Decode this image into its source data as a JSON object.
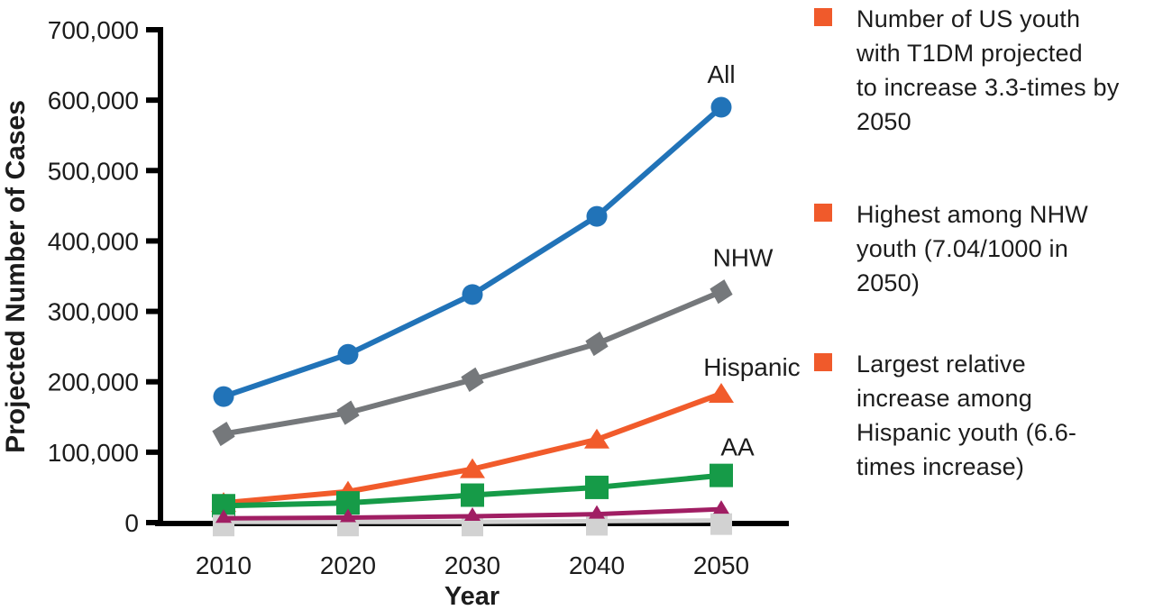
{
  "chart_data": {
    "type": "line",
    "title": "",
    "xlabel": "Year",
    "ylabel": "Projected Number of Cases",
    "x": [
      2010,
      2020,
      2030,
      2040,
      2050
    ],
    "ylim": [
      0,
      700000
    ],
    "ytick_step": 100000,
    "ytick_labels": [
      "0",
      "100,000",
      "200,000",
      "300,000",
      "400,000",
      "500,000",
      "600,000",
      "700,000"
    ],
    "grid": false,
    "legend_position": "inline-labels",
    "series": [
      {
        "id": "all",
        "label": "All",
        "color": "#2173B8",
        "marker": "circle",
        "values": [
          179000,
          239000,
          324000,
          435000,
          590000
        ]
      },
      {
        "id": "nhw",
        "label": "NHW",
        "color": "#75787B",
        "marker": "diamond",
        "values": [
          126000,
          156000,
          203000,
          254000,
          328000
        ]
      },
      {
        "id": "hispanic",
        "label": "Hispanic",
        "color": "#F15B2B",
        "marker": "triangle",
        "values": [
          28000,
          44000,
          76000,
          118000,
          183000
        ]
      },
      {
        "id": "aa",
        "label": "AA",
        "color": "#169B48",
        "marker": "square",
        "values": [
          24000,
          28000,
          39000,
          50000,
          67000
        ]
      },
      {
        "id": "lightgray",
        "label": "",
        "color": "#D2D2D2",
        "marker": "square-small",
        "values": [
          1000,
          1000,
          1000,
          2000,
          3000
        ]
      },
      {
        "id": "purple",
        "label": "",
        "color": "#A01E63",
        "marker": "triangle-small",
        "values": [
          6000,
          7000,
          9000,
          12000,
          19000
        ]
      }
    ]
  },
  "annotations": {
    "bullet_color": "#F05A2B",
    "items": [
      {
        "lines": [
          "Number of US youth",
          "with T1DM projected",
          "to increase 3.3-times by",
          "2050"
        ]
      },
      {
        "lines": [
          "Highest among NHW",
          "youth (7.04/1000 in",
          "2050)"
        ]
      },
      {
        "lines": [
          "Largest relative",
          "increase among",
          "Hispanic youth (6.6-",
          "times increase)"
        ]
      }
    ]
  }
}
